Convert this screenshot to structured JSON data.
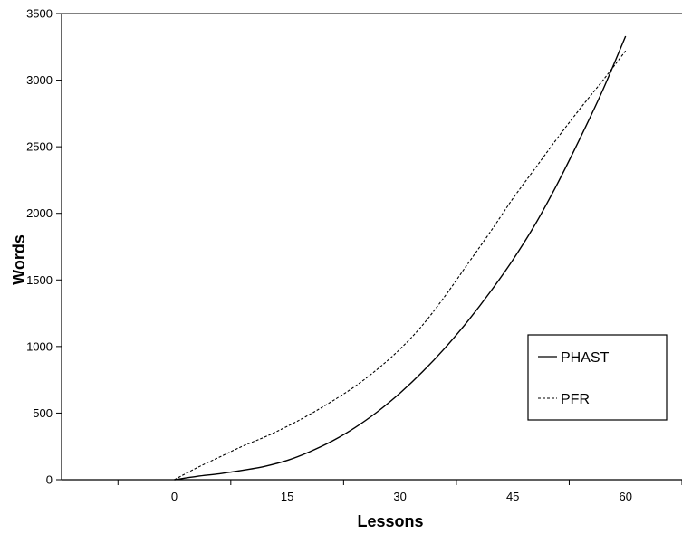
{
  "chart_data": {
    "type": "line",
    "title": "",
    "xlabel": "Lessons",
    "ylabel": "Words",
    "xlim": [
      -15,
      67.5
    ],
    "ylim": [
      0,
      3500
    ],
    "x_ticks": [
      0,
      15,
      30,
      45,
      60
    ],
    "y_ticks": [
      0,
      500,
      1000,
      1500,
      2000,
      2500,
      3000,
      3500
    ],
    "x_tick_labels": [
      "0",
      "15",
      "30",
      "45",
      "60"
    ],
    "y_tick_labels": [
      "0",
      "500",
      "1000",
      "1500",
      "2000",
      "2500",
      "3000",
      "3500"
    ],
    "grid": false,
    "legend_position": "right",
    "series": [
      {
        "name": "PHAST",
        "style": "solid",
        "color": "#000000",
        "x": [
          0,
          3,
          6,
          9,
          12,
          15,
          18,
          21,
          24,
          27,
          30,
          33,
          36,
          39,
          42,
          45,
          48,
          51,
          54,
          57,
          60
        ],
        "y": [
          0,
          25,
          45,
          70,
          100,
          145,
          210,
          290,
          390,
          510,
          650,
          810,
          990,
          1190,
          1410,
          1650,
          1920,
          2230,
          2570,
          2930,
          3330
        ]
      },
      {
        "name": "PFR",
        "style": "dashed",
        "color": "#000000",
        "x": [
          0,
          3,
          6,
          9,
          12,
          15,
          18,
          21,
          24,
          27,
          30,
          33,
          36,
          39,
          42,
          45,
          48,
          51,
          54,
          57,
          60
        ],
        "y": [
          0,
          90,
          170,
          250,
          320,
          400,
          490,
          590,
          700,
          830,
          980,
          1160,
          1380,
          1620,
          1860,
          2110,
          2340,
          2570,
          2790,
          3000,
          3220
        ]
      }
    ]
  }
}
